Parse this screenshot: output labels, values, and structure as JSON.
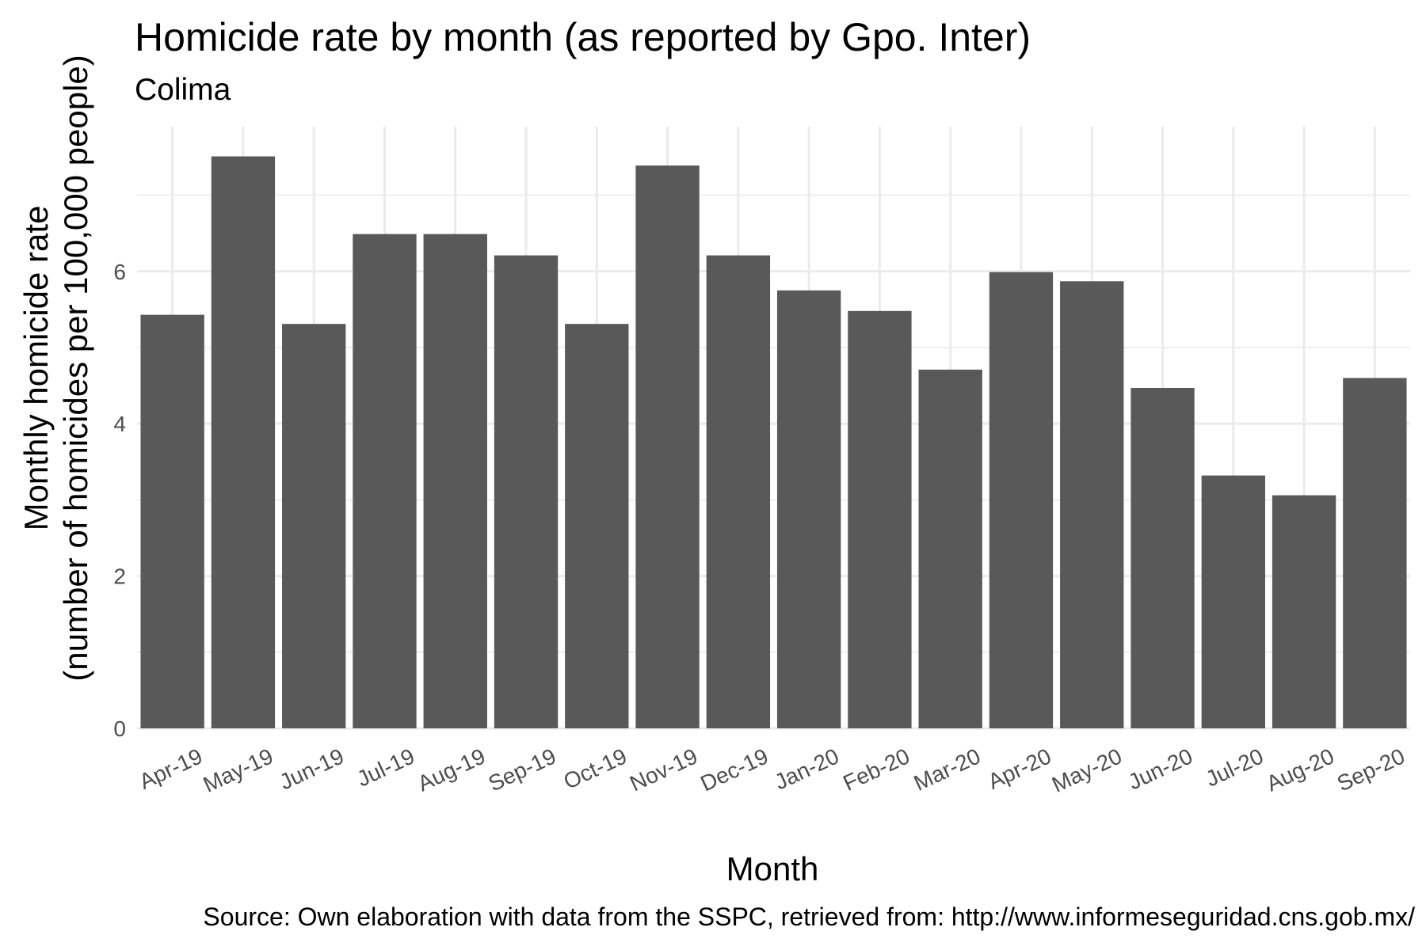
{
  "chart_data": {
    "type": "bar",
    "title": "Homicide rate by month (as reported by Gpo. Inter)",
    "subtitle": "Colima",
    "xlabel": "Month",
    "ylabel_line1": "Monthly homicide rate",
    "ylabel_line2": "(number of homicides per 100,000 people)",
    "caption": "Source: Own elaboration with data from the SSPC, retrieved from: http://www.informeseguridad.cns.gob.mx/",
    "categories": [
      "Apr-19",
      "May-19",
      "Jun-19",
      "Jul-19",
      "Aug-19",
      "Sep-19",
      "Oct-19",
      "Nov-19",
      "Dec-19",
      "Jan-20",
      "Feb-20",
      "Mar-20",
      "Apr-20",
      "May-20",
      "Jun-20",
      "Jul-20",
      "Aug-20",
      "Sep-20"
    ],
    "values": [
      5.43,
      7.51,
      5.31,
      6.49,
      6.49,
      6.21,
      5.31,
      7.39,
      6.21,
      5.75,
      5.48,
      4.71,
      5.99,
      5.87,
      4.47,
      3.32,
      3.06,
      4.6
    ],
    "ylim": [
      0,
      7.9
    ],
    "yticks": [
      "0",
      "2",
      "4",
      "6"
    ],
    "ytick_values": [
      0,
      2,
      4,
      6
    ],
    "grid": true,
    "bar_color": "#595959",
    "grid_color": "#ebebeb"
  }
}
